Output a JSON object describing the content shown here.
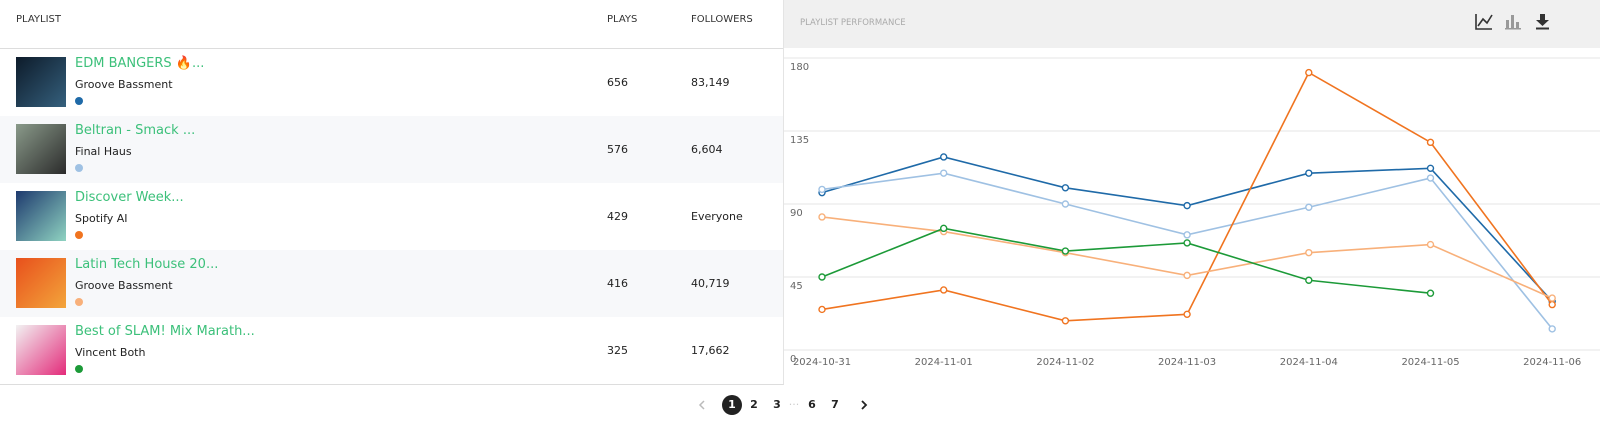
{
  "table": {
    "headers": [
      "PLAYLIST",
      "PLAYS",
      "FOLLOWERS"
    ],
    "rows": [
      {
        "name": "EDM BANGERS 🔥...",
        "owner": "Groove Bassment",
        "plays": "656",
        "followers": "83,149"
      },
      {
        "name": "Beltran - Smack ...",
        "owner": "Final Haus",
        "plays": "576",
        "followers": "6,604"
      },
      {
        "name": "Discover Week...",
        "owner": "Spotify AI",
        "plays": "429",
        "followers": "Everyone"
      },
      {
        "name": "Latin Tech House 20...",
        "owner": "Groove Bassment",
        "plays": "416",
        "followers": "40,719"
      },
      {
        "name": "Best of SLAM! Mix Marath...",
        "owner": "Vincent Both",
        "plays": "325",
        "followers": "17,662"
      }
    ]
  },
  "pagination": {
    "pages": [
      "1",
      "2",
      "3",
      "6",
      "7"
    ],
    "ellipsis": "···"
  },
  "chart_data": {
    "type": "line",
    "title": "PLAYLIST PERFORMANCE",
    "categories": [
      "2024-10-31",
      "2024-11-01",
      "2024-11-02",
      "2024-11-03",
      "2024-11-04",
      "2024-11-05",
      "2024-11-06"
    ],
    "series": [
      {
        "color": "#1f6aa8",
        "values": [
          97,
          119,
          100,
          89,
          109,
          112,
          30
        ]
      },
      {
        "color": "#9fc1e3",
        "values": [
          99,
          109,
          90,
          71,
          88,
          106,
          13
        ]
      },
      {
        "color": "#f07420",
        "values": [
          25,
          37,
          18,
          22,
          171,
          128,
          28
        ]
      },
      {
        "color": "#f8b07a",
        "values": [
          82,
          73,
          60,
          46,
          60,
          65,
          32
        ]
      },
      {
        "color": "#1c9a38",
        "values": [
          45,
          75,
          61,
          66,
          43,
          35,
          null
        ]
      }
    ],
    "ylim": [
      0,
      180
    ],
    "yticks": [
      0,
      45,
      90,
      135,
      180
    ],
    "grid": true
  }
}
